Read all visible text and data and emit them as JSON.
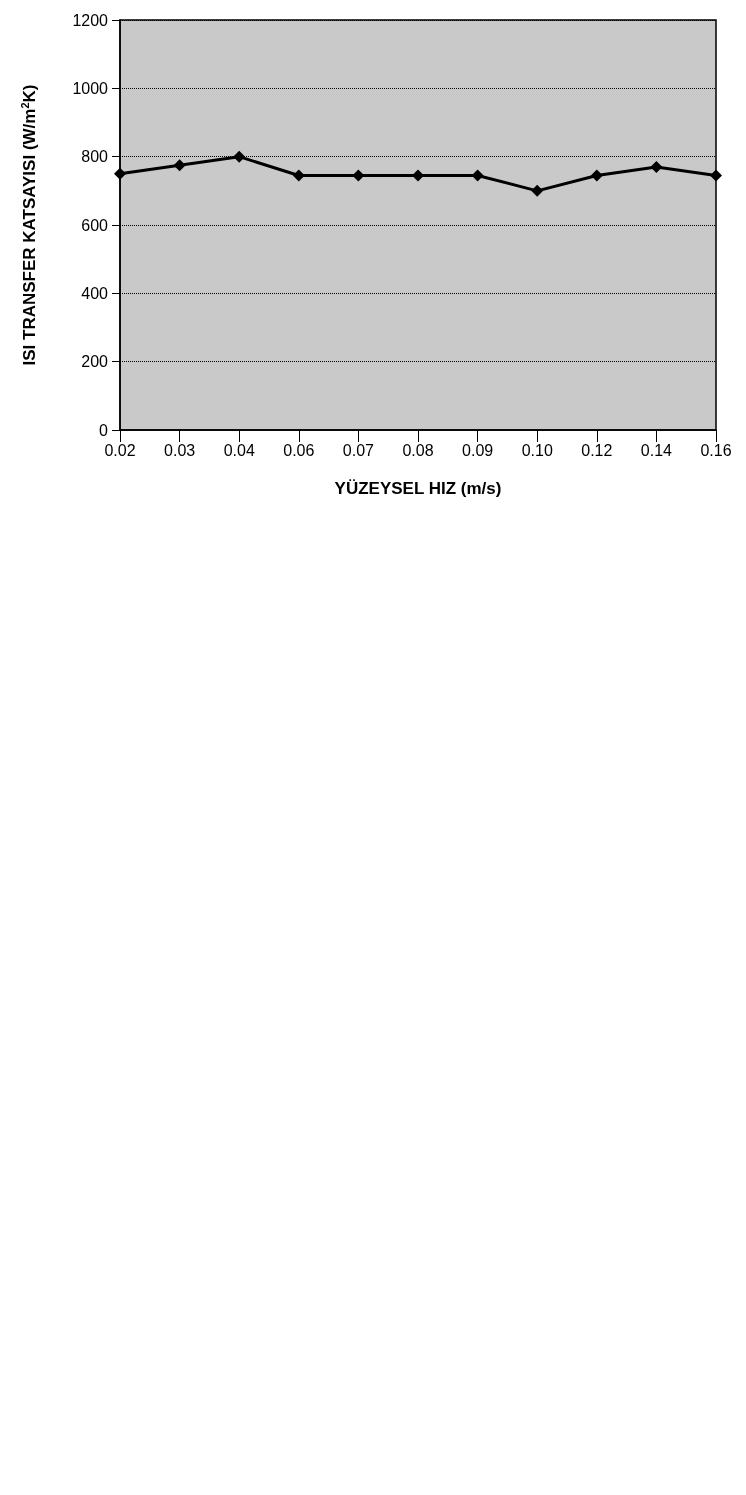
{
  "chart_data": {
    "type": "line",
    "xlabel": "YÜZEYSEL HIZ (m/s)",
    "ylabel": "ISI TRANSFER KATSAYISI (W/m$^{2}$K)",
    "categories": [
      "0.02",
      "0.03",
      "0.04",
      "0.06",
      "0.07",
      "0.08",
      "0.09",
      "0.10",
      "0.12",
      "0.14",
      "0.16"
    ],
    "series": [
      {
        "color": "#000000",
        "values": [
          750,
          775,
          800,
          745,
          745,
          745,
          745,
          700,
          745,
          770,
          745
        ]
      }
    ],
    "ylim": [
      0,
      1200
    ],
    "yticks": [
      0,
      200,
      400,
      600,
      800,
      1000,
      1200
    ],
    "grid": "y",
    "marker": "diamond",
    "line_style": "solid"
  }
}
